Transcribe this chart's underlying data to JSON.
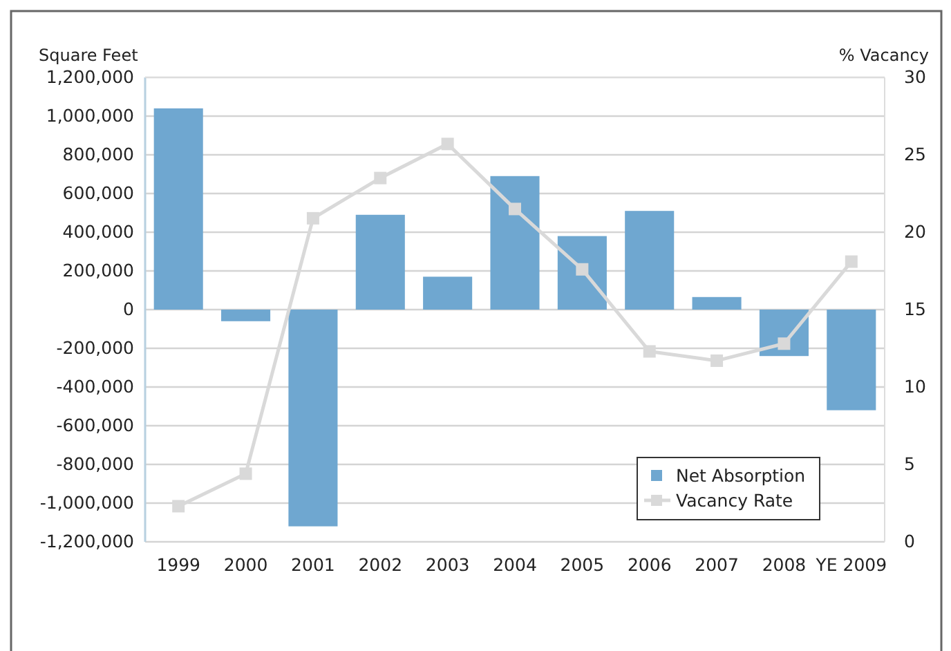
{
  "chart_data": {
    "type": "bar",
    "ylabel": "Square Feet",
    "y2label": "% Vacancy",
    "categories": [
      "1999",
      "2000",
      "2001",
      "2002",
      "2003",
      "2004",
      "2005",
      "2006",
      "2007",
      "2008",
      "YE 2009"
    ],
    "series": [
      {
        "name": "Net Absorption",
        "color": "#6fa7d0",
        "values": [
          1040000,
          -60000,
          -1120000,
          490000,
          170000,
          690000,
          380000,
          510000,
          65000,
          -240000,
          -520000
        ]
      },
      {
        "name": "Vacancy Rate",
        "type": "line",
        "axis": "y2",
        "color": "#d9d9d9",
        "marker": "square",
        "values": [
          2.3,
          4.4,
          20.9,
          23.5,
          25.7,
          21.5,
          17.6,
          12.3,
          11.7,
          12.8,
          18.1
        ]
      }
    ],
    "ylim": [
      -1200000,
      1200000
    ],
    "yticks": [
      {
        "value": 1200000,
        "label": "1,200,000"
      },
      {
        "value": 1000000,
        "label": "1,000,000"
      },
      {
        "value": 800000,
        "label": "800,000"
      },
      {
        "value": 600000,
        "label": "600,000"
      },
      {
        "value": 400000,
        "label": "400,000"
      },
      {
        "value": 200000,
        "label": "200,000"
      },
      0,
      {
        "value": -200000,
        "label": "-200,000"
      },
      {
        "value": -400000,
        "label": "-400,000"
      },
      {
        "value": -600000,
        "label": "-600,000"
      },
      {
        "value": -800000,
        "label": "-800,000"
      },
      {
        "value": -1000000,
        "label": "-1,000,000"
      },
      {
        "value": -1200000,
        "label": "-1,200,000"
      }
    ],
    "y2lim": [
      0,
      30
    ],
    "y2ticks": [
      0,
      5,
      10,
      15,
      20,
      25,
      30
    ],
    "grid": "y",
    "legend": "bottom right"
  }
}
